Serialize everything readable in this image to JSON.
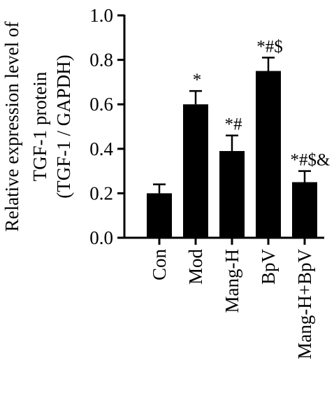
{
  "chart_data": {
    "type": "bar",
    "ylabel_lines": [
      "Relative expression level of",
      "TGF-1 protein",
      "(TGF-1 / GAPDH)"
    ],
    "categories": [
      "Con",
      "Mod",
      "Mang-H",
      "BpV",
      "Mang-H+BpV"
    ],
    "values": [
      0.2,
      0.6,
      0.39,
      0.75,
      0.25
    ],
    "errors": [
      0.04,
      0.06,
      0.07,
      0.06,
      0.05
    ],
    "annotations": [
      "",
      "*",
      "*#",
      "*#$",
      "*#$&"
    ],
    "ylim": [
      0.0,
      1.0
    ],
    "yticks": [
      0.0,
      0.2,
      0.4,
      0.6,
      0.8,
      1.0
    ],
    "ytick_labels": [
      "0.0",
      "0.2",
      "0.4",
      "0.6",
      "0.8",
      "1.0"
    ],
    "bar_color": "#000000",
    "grid": false,
    "legend": "none"
  }
}
